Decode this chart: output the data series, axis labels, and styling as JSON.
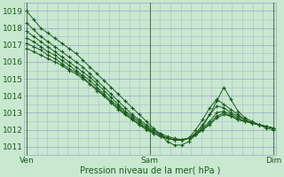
{
  "xlabel": "Pression niveau de la mer( hPa )",
  "xtick_labels": [
    "Ven",
    "Sam",
    "Dim"
  ],
  "xtick_positions": [
    0.0,
    0.5,
    1.0
  ],
  "ylim": [
    1010.5,
    1019.5
  ],
  "yticks": [
    1011,
    1012,
    1013,
    1014,
    1015,
    1016,
    1017,
    1018,
    1019
  ],
  "bg_color": "#c8e8d0",
  "grid_color": "#99aacc",
  "line_color": "#1a5c1a",
  "marker": "+",
  "figsize": [
    3.2,
    2.0
  ],
  "dpi": 100,
  "series": [
    [
      1019.0,
      1018.5,
      1018.0,
      1017.7,
      1017.4,
      1017.1,
      1016.8,
      1016.5,
      1016.1,
      1015.7,
      1015.3,
      1014.9,
      1014.5,
      1014.1,
      1013.7,
      1013.3,
      1012.9,
      1012.5,
      1012.1,
      1011.7,
      1011.3,
      1011.1,
      1011.1,
      1011.3,
      1011.7,
      1012.2,
      1012.9,
      1013.7,
      1014.5,
      1013.8,
      1013.1,
      1012.7,
      1012.5,
      1012.3,
      1012.1,
      1012.0
    ],
    [
      1018.3,
      1017.9,
      1017.5,
      1017.2,
      1016.9,
      1016.6,
      1016.3,
      1016.0,
      1015.7,
      1015.3,
      1014.9,
      1014.5,
      1014.1,
      1013.7,
      1013.3,
      1012.9,
      1012.6,
      1012.3,
      1012.0,
      1011.8,
      1011.6,
      1011.5,
      1011.4,
      1011.5,
      1012.0,
      1012.6,
      1013.3,
      1013.8,
      1013.5,
      1013.2,
      1012.9,
      1012.6,
      1012.4,
      1012.3,
      1012.2,
      1012.1
    ],
    [
      1017.8,
      1017.5,
      1017.2,
      1016.9,
      1016.6,
      1016.3,
      1016.0,
      1015.7,
      1015.4,
      1015.1,
      1014.7,
      1014.3,
      1013.9,
      1013.5,
      1013.1,
      1012.8,
      1012.5,
      1012.2,
      1011.9,
      1011.7,
      1011.5,
      1011.4,
      1011.4,
      1011.5,
      1011.8,
      1012.3,
      1012.9,
      1013.4,
      1013.3,
      1013.0,
      1012.8,
      1012.6,
      1012.4,
      1012.3,
      1012.2,
      1012.1
    ],
    [
      1017.4,
      1017.2,
      1016.9,
      1016.6,
      1016.4,
      1016.1,
      1015.8,
      1015.5,
      1015.2,
      1014.9,
      1014.5,
      1014.1,
      1013.7,
      1013.4,
      1013.0,
      1012.7,
      1012.4,
      1012.1,
      1011.9,
      1011.7,
      1011.5,
      1011.4,
      1011.4,
      1011.5,
      1011.7,
      1012.1,
      1012.5,
      1013.0,
      1013.1,
      1012.9,
      1012.7,
      1012.5,
      1012.4,
      1012.3,
      1012.2,
      1012.1
    ],
    [
      1017.1,
      1016.9,
      1016.7,
      1016.4,
      1016.2,
      1015.9,
      1015.6,
      1015.4,
      1015.1,
      1014.7,
      1014.4,
      1014.0,
      1013.6,
      1013.3,
      1012.9,
      1012.6,
      1012.3,
      1012.1,
      1011.8,
      1011.6,
      1011.5,
      1011.4,
      1011.4,
      1011.5,
      1011.7,
      1012.0,
      1012.4,
      1012.8,
      1013.0,
      1012.8,
      1012.6,
      1012.5,
      1012.4,
      1012.3,
      1012.2,
      1012.1
    ],
    [
      1016.8,
      1016.6,
      1016.4,
      1016.2,
      1016.0,
      1015.8,
      1015.5,
      1015.3,
      1015.0,
      1014.7,
      1014.3,
      1014.0,
      1013.6,
      1013.2,
      1012.9,
      1012.6,
      1012.3,
      1012.0,
      1011.8,
      1011.6,
      1011.5,
      1011.4,
      1011.4,
      1011.5,
      1011.7,
      1012.0,
      1012.3,
      1012.7,
      1012.9,
      1012.8,
      1012.6,
      1012.5,
      1012.4,
      1012.3,
      1012.2,
      1012.1
    ]
  ]
}
